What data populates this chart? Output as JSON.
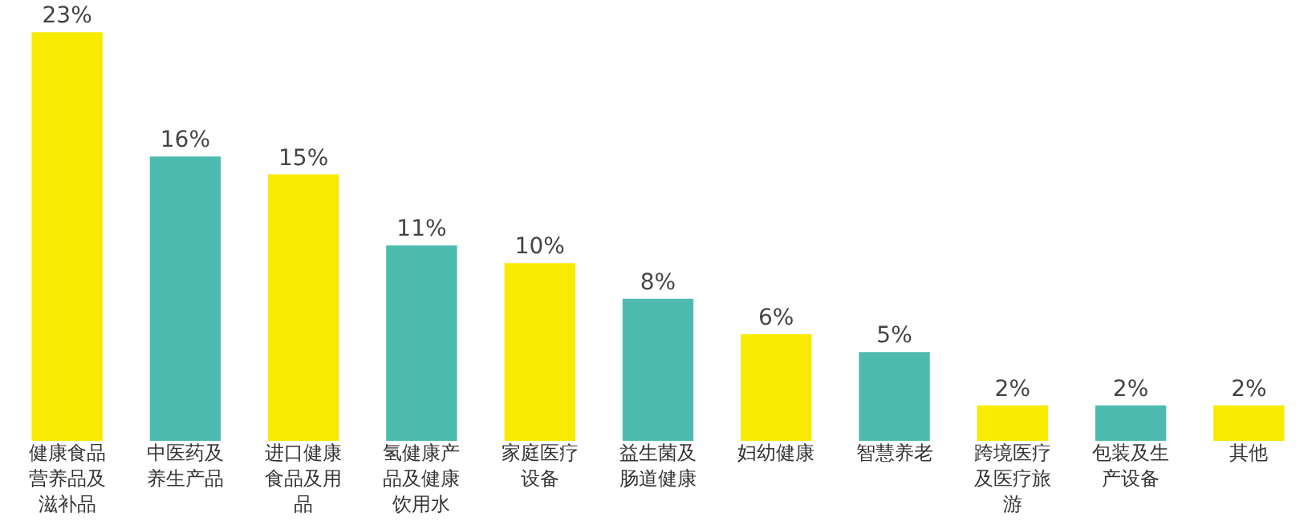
{
  "chart_data": {
    "type": "bar",
    "categories": [
      "健康食品营养品及滋补品",
      "中医药及养生产品",
      "进口健康食品及用品",
      "氢健康产品及健康饮用水",
      "家庭医疗设备",
      "益生菌及肠道健康",
      "妇幼健康",
      "智慧养老",
      "跨境医疗及医疗旅游",
      "包装及生产设备",
      "其他"
    ],
    "values": [
      23,
      16,
      15,
      11,
      10,
      8,
      6,
      5,
      2,
      2,
      2
    ],
    "colors": [
      "#f8ea00",
      "#4dbbb0",
      "#f8ea00",
      "#4dbbb0",
      "#f8ea00",
      "#4dbbb0",
      "#f8ea00",
      "#4dbbb0",
      "#f8ea00",
      "#4dbbb0",
      "#f8ea00"
    ],
    "value_labels": [
      "23%",
      "16%",
      "15%",
      "11%",
      "10%",
      "8%",
      "6%",
      "5%",
      "2%",
      "2%",
      "2%"
    ],
    "grid": false
  }
}
